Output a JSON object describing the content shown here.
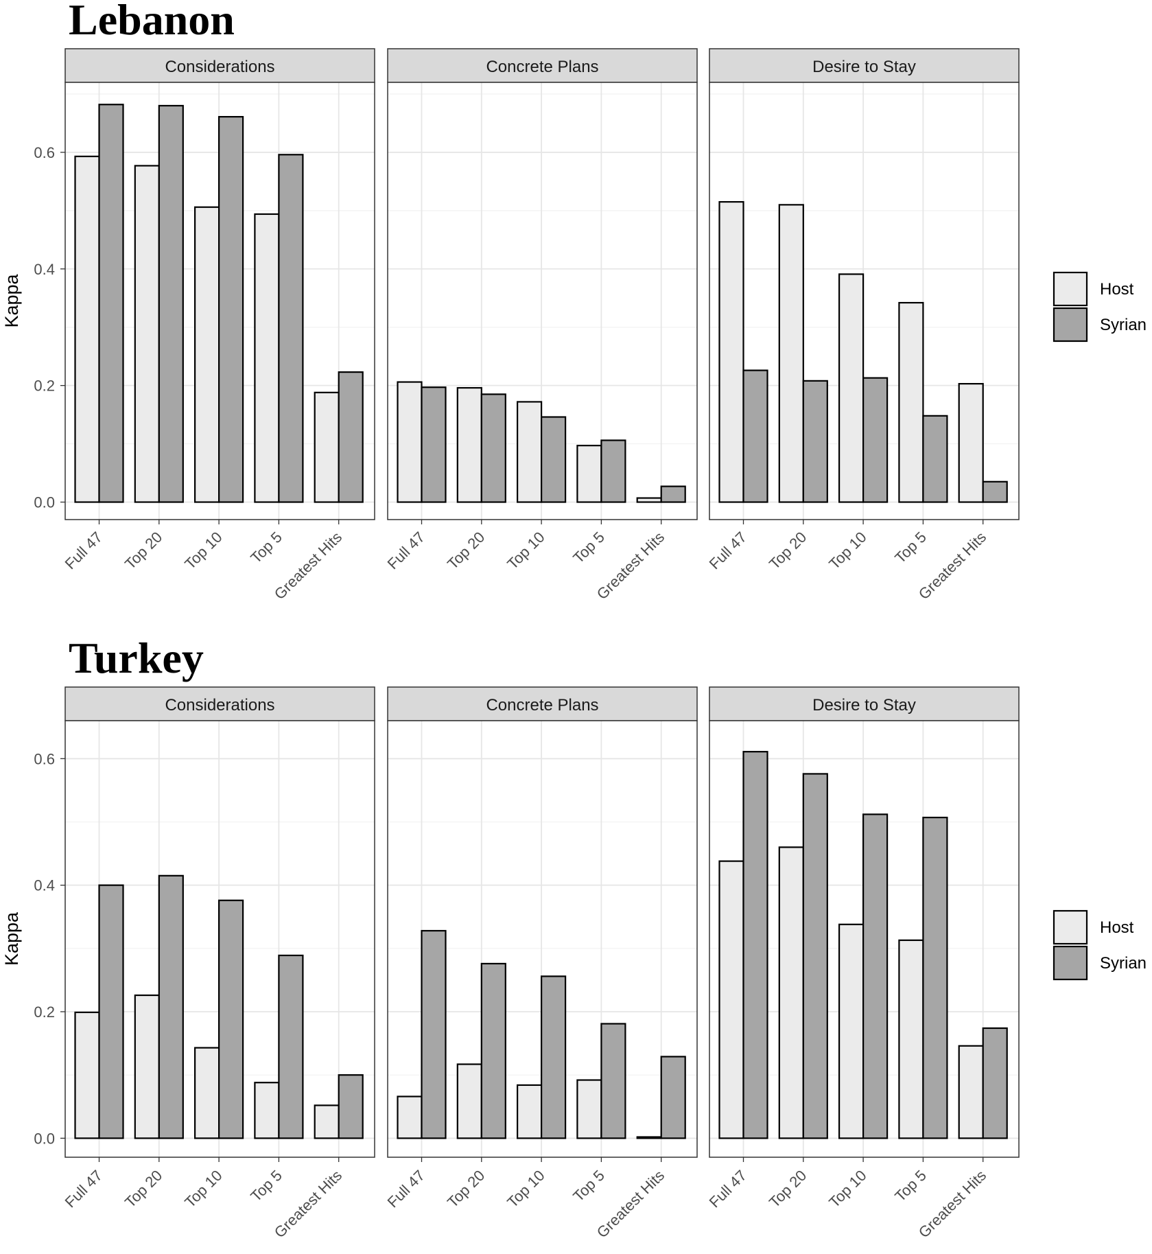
{
  "colors": {
    "host": "#ebebeb",
    "syrian": "#a6a6a6",
    "strip": "#d9d9d9",
    "grid": "#e6e6e6",
    "border": "#333333"
  },
  "chart_data": [
    {
      "type": "bar",
      "title": "Lebanon",
      "ylabel": "Kappa",
      "ylim": [
        -0.03,
        0.72
      ],
      "yticks": [
        "0.0",
        "0.2",
        "0.4",
        "0.6"
      ],
      "ytick_values": [
        0.0,
        0.2,
        0.4,
        0.6
      ],
      "grid": true,
      "legend_position": "right",
      "categories": [
        "Full 47",
        "Top  20",
        "Top  10",
        "Top  5",
        "Greatest Hits"
      ],
      "series_names": [
        "Host",
        "Syrian"
      ],
      "panels": [
        {
          "label": "Considerations",
          "series": [
            {
              "name": "Host",
              "values": [
                0.593,
                0.577,
                0.506,
                0.494,
                0.188
              ]
            },
            {
              "name": "Syrian",
              "values": [
                0.682,
                0.68,
                0.661,
                0.596,
                0.223
              ]
            }
          ]
        },
        {
          "label": "Concrete Plans",
          "series": [
            {
              "name": "Host",
              "values": [
                0.206,
                0.196,
                0.172,
                0.097,
                0.007
              ]
            },
            {
              "name": "Syrian",
              "values": [
                0.197,
                0.185,
                0.146,
                0.106,
                0.027
              ]
            }
          ]
        },
        {
          "label": "Desire to Stay",
          "series": [
            {
              "name": "Host",
              "values": [
                0.515,
                0.51,
                0.391,
                0.342,
                0.203
              ]
            },
            {
              "name": "Syrian",
              "values": [
                0.226,
                0.208,
                0.213,
                0.148,
                0.035
              ]
            }
          ]
        }
      ]
    },
    {
      "type": "bar",
      "title": "Turkey",
      "ylabel": "Kappa",
      "ylim": [
        -0.03,
        0.66
      ],
      "yticks": [
        "0.0",
        "0.2",
        "0.4",
        "0.6"
      ],
      "ytick_values": [
        0.0,
        0.2,
        0.4,
        0.6
      ],
      "grid": true,
      "legend_position": "right",
      "categories": [
        "Full 47",
        "Top  20",
        "Top  10",
        "Top  5",
        "Greatest Hits"
      ],
      "series_names": [
        "Host",
        "Syrian"
      ],
      "panels": [
        {
          "label": "Considerations",
          "series": [
            {
              "name": "Host",
              "values": [
                0.199,
                0.226,
                0.143,
                0.088,
                0.052
              ]
            },
            {
              "name": "Syrian",
              "values": [
                0.4,
                0.415,
                0.376,
                0.289,
                0.1
              ]
            }
          ]
        },
        {
          "label": "Concrete Plans",
          "series": [
            {
              "name": "Host",
              "values": [
                0.066,
                0.117,
                0.084,
                0.092,
                0.002
              ]
            },
            {
              "name": "Syrian",
              "values": [
                0.328,
                0.276,
                0.256,
                0.181,
                0.129
              ]
            }
          ]
        },
        {
          "label": "Desire to Stay",
          "series": [
            {
              "name": "Host",
              "values": [
                0.438,
                0.46,
                0.338,
                0.313,
                0.146
              ]
            },
            {
              "name": "Syrian",
              "values": [
                0.611,
                0.576,
                0.512,
                0.507,
                0.174
              ]
            }
          ]
        }
      ]
    }
  ]
}
